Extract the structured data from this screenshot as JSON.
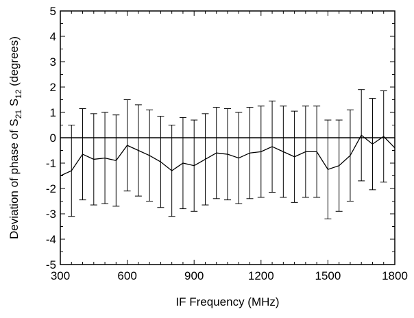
{
  "chart_data": {
    "type": "line",
    "title": "",
    "xlabel": "IF Frequency (MHz)",
    "ylabel_parts": [
      "Deviation of phase of S",
      "21",
      " S",
      "12",
      " (degrees)"
    ],
    "xlim": [
      300,
      1800
    ],
    "ylim": [
      -5,
      5
    ],
    "xticks": [
      300,
      600,
      900,
      1200,
      1500,
      1800
    ],
    "yticks": [
      -5,
      -4,
      -3,
      -2,
      -1,
      0,
      1,
      2,
      3,
      4,
      5
    ],
    "x_minor_step": 50,
    "y_minor_step": 0.5,
    "zero_line": true,
    "grid": false,
    "series": [
      {
        "x": [
          300,
          350,
          400,
          450,
          500,
          550,
          600,
          650,
          700,
          750,
          800,
          850,
          900,
          950,
          1000,
          1050,
          1100,
          1150,
          1200,
          1250,
          1300,
          1350,
          1400,
          1450,
          1500,
          1550,
          1600,
          1650,
          1700,
          1750,
          1800
        ],
        "y": [
          -1.5,
          -1.3,
          -0.65,
          -0.85,
          -0.8,
          -0.9,
          -0.3,
          -0.5,
          -0.7,
          -0.95,
          -1.3,
          -1.0,
          -1.1,
          -0.85,
          -0.6,
          -0.65,
          -0.8,
          -0.6,
          -0.55,
          -0.35,
          -0.55,
          -0.75,
          -0.55,
          -0.55,
          -1.25,
          -1.1,
          -0.7,
          0.1,
          -0.25,
          0.05,
          -0.4
        ],
        "error": [
          null,
          1.8,
          1.8,
          1.8,
          1.8,
          1.8,
          1.8,
          1.8,
          1.8,
          1.8,
          1.8,
          1.8,
          1.8,
          1.8,
          1.8,
          1.8,
          1.8,
          1.8,
          1.8,
          1.8,
          1.8,
          1.8,
          1.8,
          1.8,
          1.95,
          1.8,
          1.8,
          1.8,
          1.8,
          1.8,
          null
        ]
      }
    ]
  }
}
